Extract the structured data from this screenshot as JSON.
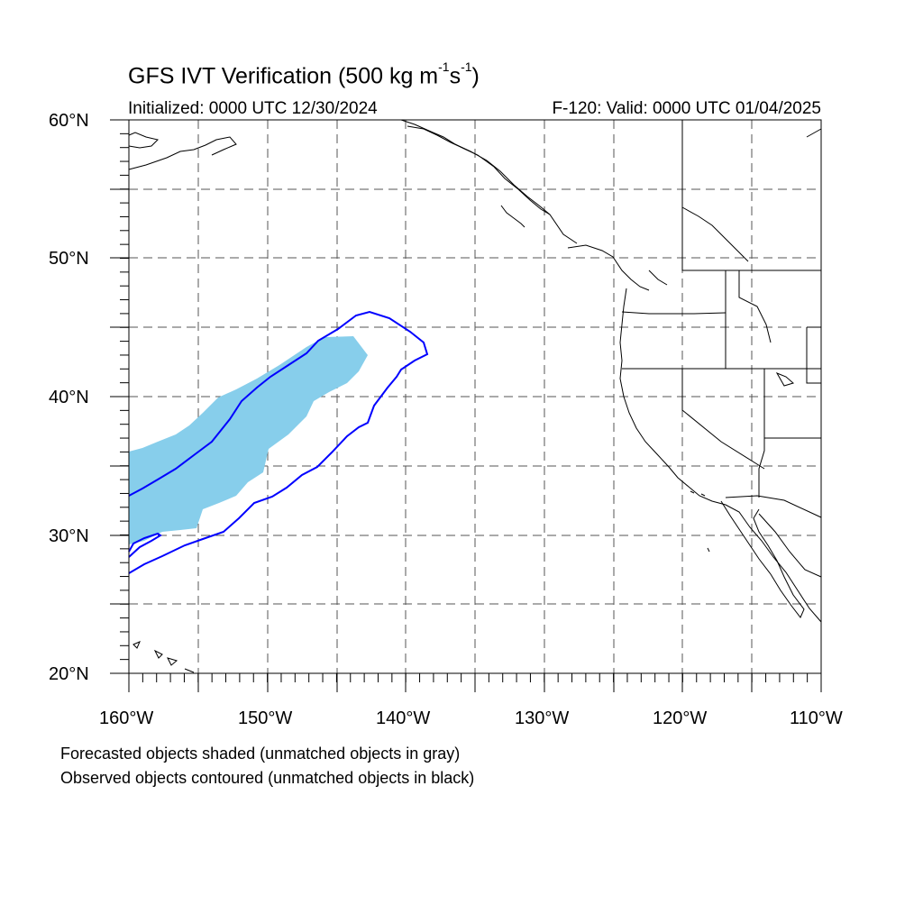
{
  "title": {
    "main": "GFS IVT Verification (500 kg m",
    "exp1": "-1",
    "mid": "s",
    "exp2": "-1",
    "end": ")"
  },
  "header": {
    "initialized": "Initialized: 0000 UTC 12/30/2024",
    "valid": "F-120: Valid: 0000 UTC 01/04/2025"
  },
  "axes": {
    "lat_labels": [
      "60°N",
      "50°N",
      "40°N",
      "30°N",
      "20°N"
    ],
    "lon_labels": [
      "160°W",
      "150°W",
      "140°W",
      "130°W",
      "120°W",
      "110°W"
    ],
    "lat_range": [
      20,
      60
    ],
    "lon_range": [
      -160,
      -110
    ],
    "grid": "dashed every 5°"
  },
  "legend": {
    "forecast_note": "Forecasted objects shaded (unmatched objects in gray)",
    "observed_note": "Observed objects contoured (unmatched objects in black)"
  },
  "colors": {
    "forecast_fill": "#87ceeb",
    "observed_contour": "#0000ff",
    "coastline": "#000000",
    "grid": "#555555"
  }
}
